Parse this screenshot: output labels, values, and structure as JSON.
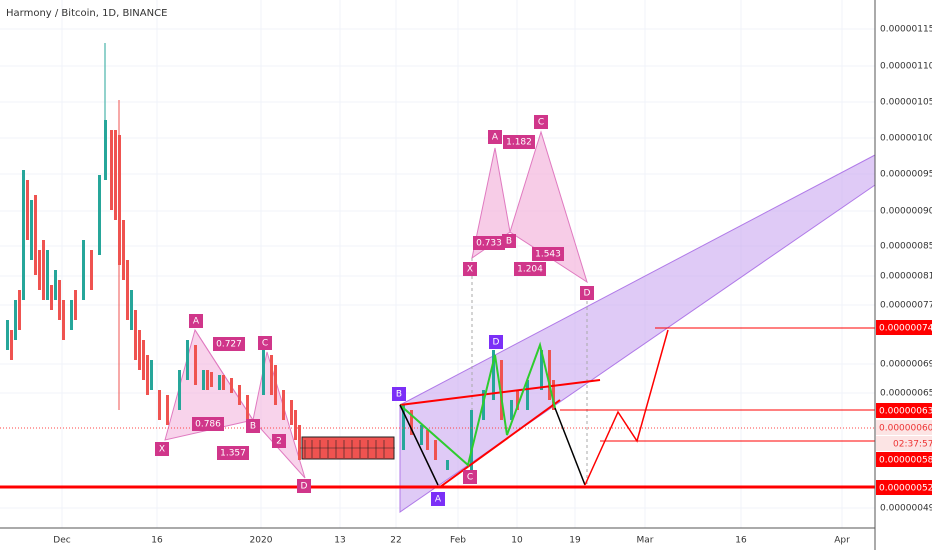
{
  "header": {
    "title": "Harmony / Bitcoin, 1D, BINANCE"
  },
  "price_axis": [
    "0.00000115",
    "0.00000110",
    "0.00000105",
    "0.00000100",
    "0.00000095",
    "0.00000090",
    "0.00000085",
    "0.00000081",
    "0.00000077",
    "0.00000069",
    "0.00000065",
    "0.00000049"
  ],
  "price_tags": [
    "0.00000074",
    "0.00000063",
    "0.00000060",
    "02:37:57",
    "0.00000058",
    "0.00000052"
  ],
  "time_axis": [
    "Dec",
    "16",
    "2020",
    "13",
    "22",
    "Feb",
    "10",
    "19",
    "Mar",
    "16",
    "Apr"
  ],
  "pattern_labels": [
    "X",
    "A",
    "0.727",
    "C",
    "0.786",
    "B",
    "2",
    "1.357",
    "D",
    "B",
    "D",
    "C",
    "A",
    "A",
    "C",
    "1.182",
    "0.733",
    "B",
    "X",
    "1.543",
    "1.204",
    "D"
  ]
}
